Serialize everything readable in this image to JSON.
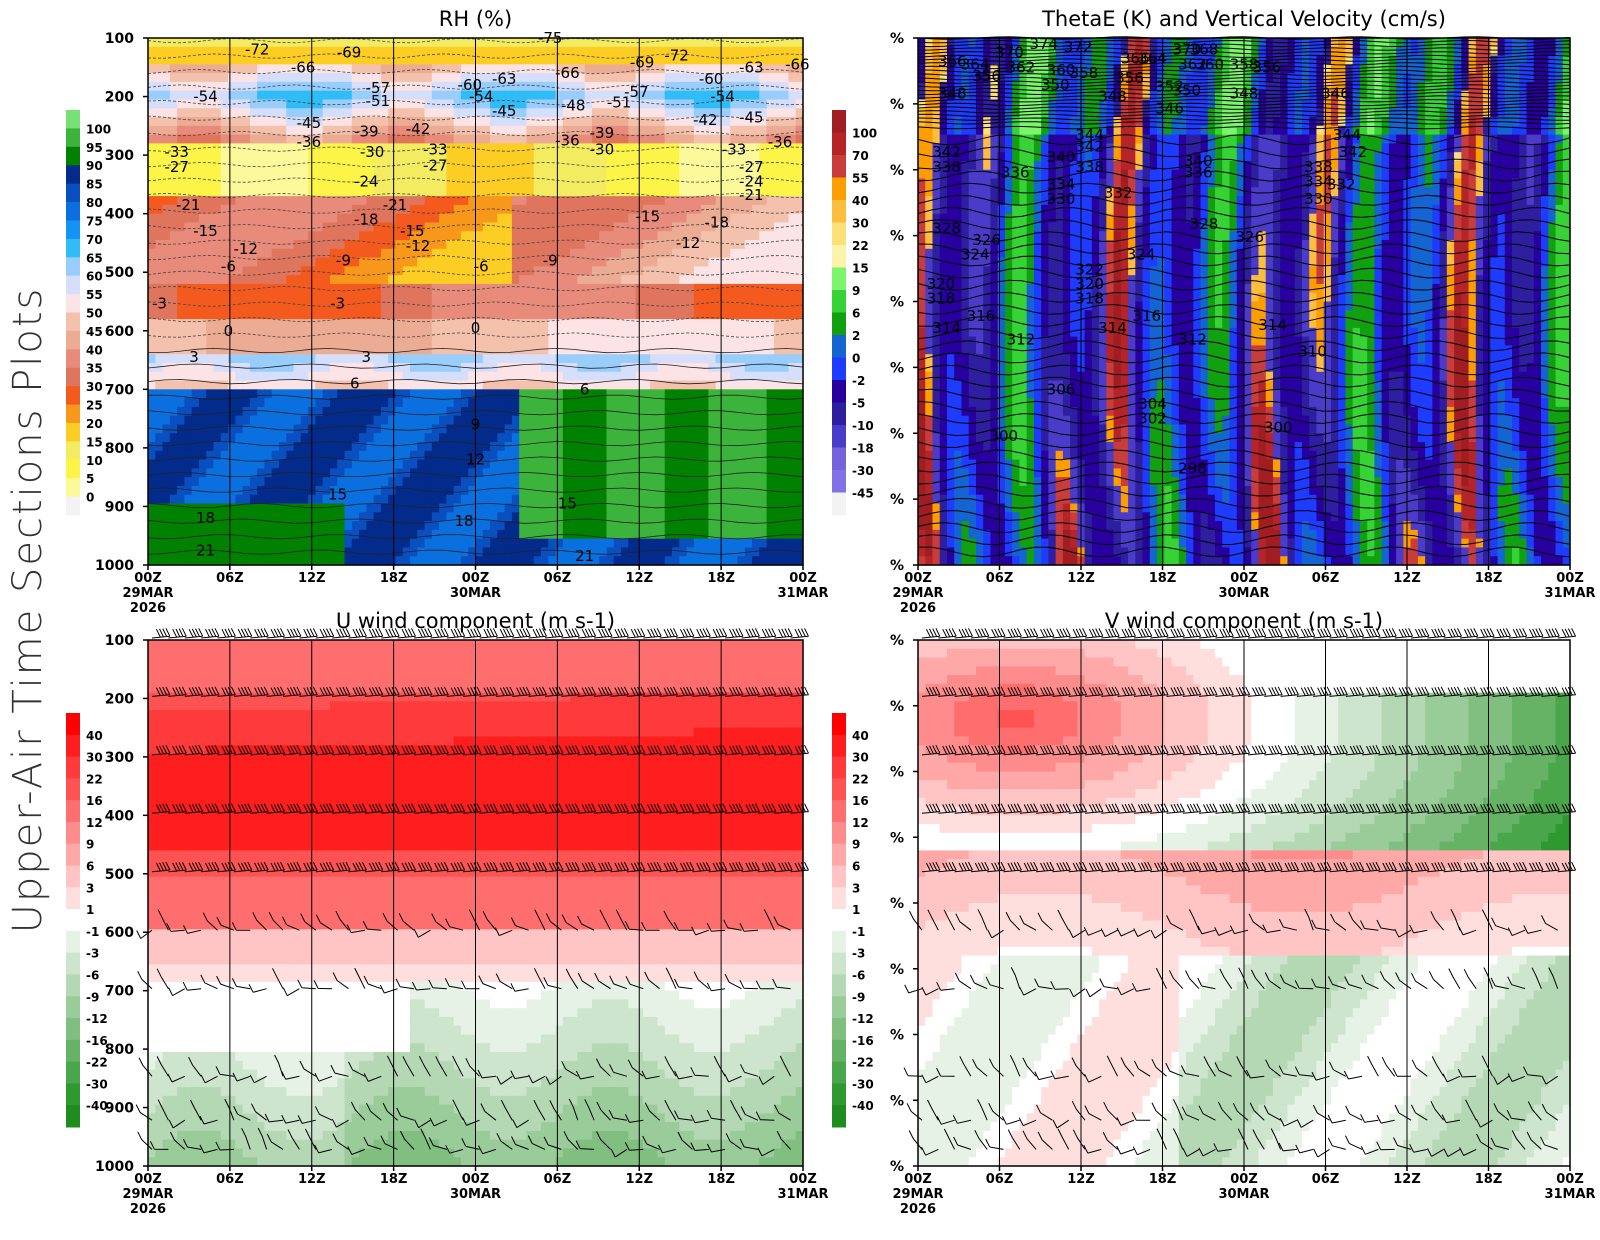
{
  "figure": {
    "side_title": "Upper-Air Time Sections Plots"
  },
  "chart_data": [
    {
      "type": "heatmap",
      "id": "rh",
      "title": "RH (%)",
      "ylabel_ticks": [
        "100",
        "200",
        "300",
        "400",
        "500",
        "600",
        "700",
        "800",
        "900",
        "1000"
      ],
      "y_values": [
        100,
        200,
        300,
        400,
        500,
        600,
        700,
        800,
        900,
        1000
      ],
      "ylim": [
        1000,
        100
      ],
      "x_ticks": [
        "00Z",
        "06Z",
        "12Z",
        "18Z",
        "00Z",
        "06Z",
        "12Z",
        "18Z",
        "00Z"
      ],
      "x_date_labels": [
        {
          "index": 0,
          "lines": [
            "29MAR",
            "2026"
          ]
        },
        {
          "index": 4,
          "lines": [
            "30MAR"
          ]
        },
        {
          "index": 8,
          "lines": [
            "31MAR"
          ]
        }
      ],
      "colorbar": {
        "labels": [
          "100",
          "95",
          "90",
          "85",
          "80",
          "75",
          "70",
          "65",
          "60",
          "55",
          "50",
          "45",
          "40",
          "35",
          "30",
          "25",
          "20",
          "15",
          "10",
          "5",
          "0"
        ],
        "colors": [
          "#77e077",
          "#3cb43c",
          "#008200",
          "#032b8b",
          "#0a4fbf",
          "#0a70e0",
          "#1492f5",
          "#2fbcf7",
          "#99cdfb",
          "#d5defb",
          "#fbe3e6",
          "#f4c1ac",
          "#ecac94",
          "#e88b7b",
          "#e0755e",
          "#f45a1e",
          "#f7981a",
          "#fccd22",
          "#f4ec60",
          "#fcf447",
          "#fcf99a",
          "#f3f3f3"
        ]
      },
      "contour_labels": [
        "-75",
        "-72",
        "-69",
        "-66",
        "-63",
        "-60",
        "-57",
        "-54",
        "-51",
        "-48",
        "-45",
        "-42",
        "-39",
        "-36",
        "-33",
        "-30",
        "-27",
        "-24",
        "-21",
        "-18",
        "-15",
        "-12",
        "-9",
        "-6",
        "-3",
        "0",
        "3",
        "6",
        "9",
        "12",
        "15",
        "18",
        "21"
      ],
      "contour_label_marks": [
        {
          "t": 0.19,
          "p": 120,
          "v": "-72"
        },
        {
          "t": 0.27,
          "p": 150,
          "v": "-66"
        },
        {
          "t": 0.35,
          "p": 125,
          "v": "-69"
        },
        {
          "t": 0.1,
          "p": 200,
          "v": "-54"
        },
        {
          "t": 0.28,
          "p": 245,
          "v": "-45"
        },
        {
          "t": 0.28,
          "p": 278,
          "v": "-36"
        },
        {
          "t": 0.4,
          "p": 185,
          "v": "-57"
        },
        {
          "t": 0.4,
          "p": 208,
          "v": "-51"
        },
        {
          "t": 0.38,
          "p": 260,
          "v": "-39"
        },
        {
          "t": 0.47,
          "p": 255,
          "v": "-42"
        },
        {
          "t": 0.56,
          "p": 180,
          "v": "-60"
        },
        {
          "t": 0.62,
          "p": 170,
          "v": "-63"
        },
        {
          "t": 0.58,
          "p": 200,
          "v": "-54"
        },
        {
          "t": 0.62,
          "p": 225,
          "v": "-45"
        },
        {
          "t": 0.5,
          "p": 290,
          "v": "-33"
        },
        {
          "t": 0.39,
          "p": 295,
          "v": "-30"
        },
        {
          "t": 0.5,
          "p": 318,
          "v": "-27"
        },
        {
          "t": 0.38,
          "p": 345,
          "v": "-24"
        },
        {
          "t": 0.05,
          "p": 295,
          "v": "-33"
        },
        {
          "t": 0.05,
          "p": 320,
          "v": "-27"
        },
        {
          "t": 0.7,
          "p": 100,
          "v": "-75"
        },
        {
          "t": 0.73,
          "p": 160,
          "v": "-66"
        },
        {
          "t": 0.74,
          "p": 215,
          "v": "-48"
        },
        {
          "t": 0.73,
          "p": 275,
          "v": "-36"
        },
        {
          "t": 0.79,
          "p": 262,
          "v": "-39"
        },
        {
          "t": 0.79,
          "p": 290,
          "v": "-30"
        },
        {
          "t": 0.86,
          "p": 142,
          "v": "-69"
        },
        {
          "t": 0.92,
          "p": 130,
          "v": "-72"
        },
        {
          "t": 0.85,
          "p": 192,
          "v": "-57"
        },
        {
          "t": 0.82,
          "p": 210,
          "v": "-51"
        },
        {
          "t": 0.98,
          "p": 170,
          "v": "-60"
        },
        {
          "t": 1.0,
          "p": 200,
          "v": "-54"
        },
        {
          "t": 0.97,
          "p": 240,
          "v": "-42"
        },
        {
          "t": 1.05,
          "p": 236,
          "v": "-45"
        },
        {
          "t": 1.02,
          "p": 290,
          "v": "-33"
        },
        {
          "t": 1.1,
          "p": 278,
          "v": "-36"
        },
        {
          "t": 1.05,
          "p": 150,
          "v": "-63"
        },
        {
          "t": 1.13,
          "p": 145,
          "v": "-66"
        },
        {
          "t": 1.05,
          "p": 320,
          "v": "-27"
        },
        {
          "t": 1.05,
          "p": 345,
          "v": "-24"
        },
        {
          "t": 1.05,
          "p": 368,
          "v": "-21"
        },
        {
          "t": 0.07,
          "p": 385,
          "v": "-21"
        },
        {
          "t": 0.1,
          "p": 430,
          "v": "-15"
        },
        {
          "t": 0.17,
          "p": 460,
          "v": "-12"
        },
        {
          "t": 0.14,
          "p": 490,
          "v": "-6"
        },
        {
          "t": 0.34,
          "p": 480,
          "v": "-9"
        },
        {
          "t": 0.43,
          "p": 385,
          "v": "-21"
        },
        {
          "t": 0.38,
          "p": 410,
          "v": "-18"
        },
        {
          "t": 0.46,
          "p": 430,
          "v": "-15"
        },
        {
          "t": 0.47,
          "p": 455,
          "v": "-12"
        },
        {
          "t": 0.58,
          "p": 490,
          "v": "-6"
        },
        {
          "t": 0.7,
          "p": 480,
          "v": "-9"
        },
        {
          "t": 0.33,
          "p": 553,
          "v": "-3"
        },
        {
          "t": 0.02,
          "p": 553,
          "v": "-3"
        },
        {
          "t": 0.14,
          "p": 600,
          "v": "0"
        },
        {
          "t": 0.57,
          "p": 595,
          "v": "0"
        },
        {
          "t": 0.08,
          "p": 645,
          "v": "3"
        },
        {
          "t": 0.38,
          "p": 645,
          "v": "3"
        },
        {
          "t": 0.36,
          "p": 690,
          "v": "6"
        },
        {
          "t": 0.87,
          "p": 405,
          "v": "-15"
        },
        {
          "t": 0.94,
          "p": 450,
          "v": "-12"
        },
        {
          "t": 0.99,
          "p": 415,
          "v": "-18"
        },
        {
          "t": 0.76,
          "p": 700,
          "v": "6"
        },
        {
          "t": 0.57,
          "p": 760,
          "v": "9"
        },
        {
          "t": 0.57,
          "p": 820,
          "v": "12"
        },
        {
          "t": 0.33,
          "p": 880,
          "v": "15"
        },
        {
          "t": 0.73,
          "p": 895,
          "v": "15"
        },
        {
          "t": 0.1,
          "p": 920,
          "v": "18"
        },
        {
          "t": 0.55,
          "p": 925,
          "v": "18"
        },
        {
          "t": 0.1,
          "p": 975,
          "v": "21"
        },
        {
          "t": 0.76,
          "p": 985,
          "v": "21"
        }
      ]
    },
    {
      "type": "heatmap",
      "id": "thetae",
      "title": "ThetaE (K) and Vertical Velocity (cm/s)",
      "ylabel_ticks": [
        "%",
        "%",
        "%",
        "%",
        "%",
        "%",
        "%",
        "%",
        "%"
      ],
      "ylim": [
        1000,
        100
      ],
      "x_ticks": [
        "00Z",
        "06Z",
        "12Z",
        "18Z",
        "00Z",
        "06Z",
        "12Z",
        "18Z",
        "00Z"
      ],
      "x_date_labels": [
        {
          "index": 0,
          "lines": [
            "29MAR",
            "2026"
          ]
        },
        {
          "index": 4,
          "lines": [
            "30MAR"
          ]
        },
        {
          "index": 8,
          "lines": [
            "31MAR"
          ]
        }
      ],
      "colorbar": {
        "labels": [
          "100",
          "70",
          "55",
          "40",
          "30",
          "22",
          "15",
          "9",
          "6",
          "2",
          "0",
          "-2",
          "-5",
          "-10",
          "-18",
          "-30",
          "-45"
        ],
        "colors": [
          "#a01e22",
          "#b52428",
          "#c83c3c",
          "#fc9e00",
          "#fcbe3c",
          "#fce078",
          "#fcf4a8",
          "#7cf46c",
          "#36d236",
          "#10a010",
          "#1464d2",
          "#1e3cff",
          "#2800a0",
          "#2e1ea0",
          "#4a3cc8",
          "#7364dc",
          "#8270e6",
          "#f3f3f3"
        ]
      },
      "contour_label_marks": [
        {
          "t": 0.06,
          "p": 140,
          "v": "366"
        },
        {
          "t": 0.1,
          "p": 145,
          "v": "364"
        },
        {
          "t": 0.12,
          "p": 165,
          "v": "356"
        },
        {
          "t": 0.16,
          "p": 125,
          "v": "370"
        },
        {
          "t": 0.18,
          "p": 150,
          "v": "362"
        },
        {
          "t": 0.22,
          "p": 110,
          "v": "374"
        },
        {
          "t": 0.28,
          "p": 115,
          "v": "372"
        },
        {
          "t": 0.25,
          "p": 155,
          "v": "360"
        },
        {
          "t": 0.29,
          "p": 160,
          "v": "358"
        },
        {
          "t": 0.38,
          "p": 135,
          "v": "366"
        },
        {
          "t": 0.41,
          "p": 135,
          "v": "364"
        },
        {
          "t": 0.37,
          "p": 168,
          "v": "356"
        },
        {
          "t": 0.47,
          "p": 120,
          "v": "370"
        },
        {
          "t": 0.48,
          "p": 145,
          "v": "362"
        },
        {
          "t": 0.5,
          "p": 120,
          "v": "368"
        },
        {
          "t": 0.51,
          "p": 145,
          "v": "360"
        },
        {
          "t": 0.57,
          "p": 145,
          "v": "358"
        },
        {
          "t": 0.61,
          "p": 150,
          "v": "356"
        },
        {
          "t": 0.06,
          "p": 195,
          "v": "348"
        },
        {
          "t": 0.24,
          "p": 180,
          "v": "350"
        },
        {
          "t": 0.34,
          "p": 200,
          "v": "348"
        },
        {
          "t": 0.44,
          "p": 183,
          "v": "352"
        },
        {
          "t": 0.47,
          "p": 190,
          "v": "350"
        },
        {
          "t": 0.57,
          "p": 195,
          "v": "348"
        },
        {
          "t": 0.73,
          "p": 195,
          "v": "346"
        },
        {
          "t": 0.44,
          "p": 220,
          "v": "346"
        },
        {
          "t": 0.3,
          "p": 266,
          "v": "344"
        },
        {
          "t": 0.75,
          "p": 266,
          "v": "344"
        },
        {
          "t": 0.05,
          "p": 295,
          "v": "342"
        },
        {
          "t": 0.05,
          "p": 320,
          "v": "338"
        },
        {
          "t": 0.3,
          "p": 285,
          "v": "342"
        },
        {
          "t": 0.25,
          "p": 303,
          "v": "340"
        },
        {
          "t": 0.3,
          "p": 320,
          "v": "338"
        },
        {
          "t": 0.17,
          "p": 330,
          "v": "336"
        },
        {
          "t": 0.25,
          "p": 350,
          "v": "334"
        },
        {
          "t": 0.25,
          "p": 375,
          "v": "330"
        },
        {
          "t": 0.35,
          "p": 365,
          "v": "332"
        },
        {
          "t": 0.49,
          "p": 310,
          "v": "340"
        },
        {
          "t": 0.49,
          "p": 330,
          "v": "336"
        },
        {
          "t": 0.76,
          "p": 295,
          "v": "342"
        },
        {
          "t": 0.7,
          "p": 320,
          "v": "338"
        },
        {
          "t": 0.7,
          "p": 345,
          "v": "334"
        },
        {
          "t": 0.74,
          "p": 350,
          "v": "332"
        },
        {
          "t": 0.7,
          "p": 375,
          "v": "330"
        },
        {
          "t": 0.05,
          "p": 425,
          "v": "328"
        },
        {
          "t": 0.12,
          "p": 445,
          "v": "326"
        },
        {
          "t": 0.1,
          "p": 470,
          "v": "324"
        },
        {
          "t": 0.5,
          "p": 418,
          "v": "328"
        },
        {
          "t": 0.58,
          "p": 440,
          "v": "326"
        },
        {
          "t": 0.39,
          "p": 470,
          "v": "324"
        },
        {
          "t": 0.3,
          "p": 495,
          "v": "322"
        },
        {
          "t": 0.3,
          "p": 520,
          "v": "320"
        },
        {
          "t": 0.3,
          "p": 545,
          "v": "318"
        },
        {
          "t": 0.04,
          "p": 520,
          "v": "320"
        },
        {
          "t": 0.04,
          "p": 545,
          "v": "318"
        },
        {
          "t": 0.11,
          "p": 575,
          "v": "316"
        },
        {
          "t": 0.4,
          "p": 575,
          "v": "316"
        },
        {
          "t": 0.05,
          "p": 595,
          "v": "314"
        },
        {
          "t": 0.34,
          "p": 595,
          "v": "314"
        },
        {
          "t": 0.62,
          "p": 590,
          "v": "314"
        },
        {
          "t": 0.18,
          "p": 615,
          "v": "312"
        },
        {
          "t": 0.48,
          "p": 615,
          "v": "312"
        },
        {
          "t": 0.69,
          "p": 635,
          "v": "310"
        },
        {
          "t": 0.25,
          "p": 700,
          "v": "306"
        },
        {
          "t": 0.41,
          "p": 725,
          "v": "304"
        },
        {
          "t": 0.41,
          "p": 750,
          "v": "302"
        },
        {
          "t": 0.15,
          "p": 780,
          "v": "300"
        },
        {
          "t": 0.63,
          "p": 765,
          "v": "300"
        },
        {
          "t": 0.48,
          "p": 835,
          "v": "298"
        }
      ]
    },
    {
      "type": "heatmap",
      "id": "uwind",
      "title": "U wind component (m s-1)",
      "ylabel_ticks": [
        "100",
        "200",
        "300",
        "400",
        "500",
        "600",
        "700",
        "800",
        "900",
        "1000"
      ],
      "y_values": [
        100,
        200,
        300,
        400,
        500,
        600,
        700,
        800,
        900,
        1000
      ],
      "ylim": [
        1000,
        100
      ],
      "x_ticks": [
        "00Z",
        "06Z",
        "12Z",
        "18Z",
        "00Z",
        "06Z",
        "12Z",
        "18Z",
        "00Z"
      ],
      "x_date_labels": [
        {
          "index": 0,
          "lines": [
            "29MAR",
            "2026"
          ]
        },
        {
          "index": 4,
          "lines": [
            "30MAR"
          ]
        },
        {
          "index": 8,
          "lines": [
            "31MAR"
          ]
        }
      ],
      "colorbar": {
        "labels": [
          "40",
          "30",
          "22",
          "16",
          "12",
          "9",
          "6",
          "3",
          "1",
          "-1",
          "-3",
          "-6",
          "-9",
          "-12",
          "-16",
          "-22",
          "-30",
          "-40"
        ],
        "colors": [
          "#ff0000",
          "#ff1e1e",
          "#ff3a3a",
          "#ff5353",
          "#ff6e6e",
          "#ff8c8c",
          "#ffa8a8",
          "#ffc4c4",
          "#ffdede",
          "#ffffff",
          "#e5f2e5",
          "#cce5cc",
          "#b3d8b3",
          "#99cc99",
          "#80bf80",
          "#66b366",
          "#4aa64a",
          "#2e992e",
          "#1e8c1e"
        ]
      },
      "barb_levels": [
        100,
        200,
        300,
        400,
        500,
        600,
        700,
        850,
        925,
        975
      ]
    },
    {
      "type": "heatmap",
      "id": "vwind",
      "title": "V wind component (m s-1)",
      "ylabel_ticks": [
        "%",
        "%",
        "%",
        "%",
        "%",
        "%",
        "%",
        "%",
        "%"
      ],
      "ylim": [
        1000,
        100
      ],
      "x_ticks": [
        "00Z",
        "06Z",
        "12Z",
        "18Z",
        "00Z",
        "06Z",
        "12Z",
        "18Z",
        "00Z"
      ],
      "x_date_labels": [
        {
          "index": 0,
          "lines": [
            "29MAR",
            "2026"
          ]
        },
        {
          "index": 4,
          "lines": [
            "30MAR"
          ]
        },
        {
          "index": 8,
          "lines": [
            "31MAR"
          ]
        }
      ],
      "colorbar": {
        "labels": [
          "40",
          "30",
          "22",
          "16",
          "12",
          "9",
          "6",
          "3",
          "1",
          "-1",
          "-3",
          "-6",
          "-9",
          "-12",
          "-16",
          "-22",
          "-30",
          "-40"
        ],
        "colors": [
          "#ff0000",
          "#ff1e1e",
          "#ff3a3a",
          "#ff5353",
          "#ff6e6e",
          "#ff8c8c",
          "#ffa8a8",
          "#ffc4c4",
          "#ffdede",
          "#ffffff",
          "#e5f2e5",
          "#cce5cc",
          "#b3d8b3",
          "#99cc99",
          "#80bf80",
          "#66b366",
          "#4aa64a",
          "#2e992e",
          "#1e8c1e"
        ]
      },
      "barb_levels": [
        100,
        200,
        300,
        400,
        500,
        600,
        700,
        850,
        925,
        975
      ]
    }
  ]
}
